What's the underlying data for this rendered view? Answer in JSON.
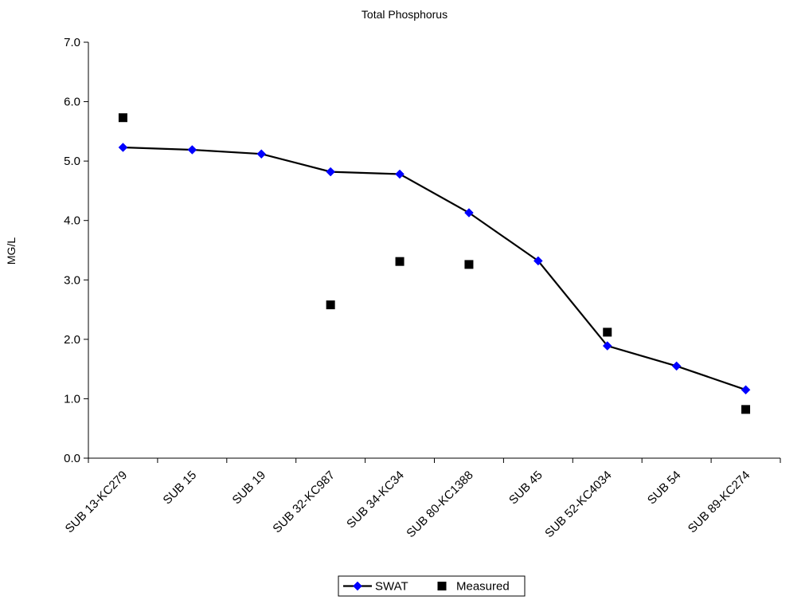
{
  "chart_data": {
    "type": "line",
    "title": "Total Phosphorus",
    "xlabel": "",
    "ylabel": "MG/L",
    "ylim": [
      0,
      7
    ],
    "yticks": [
      "0.0",
      "1.0",
      "2.0",
      "3.0",
      "4.0",
      "5.0",
      "6.0",
      "7.0"
    ],
    "categories": [
      "SUB 13-KC279",
      "SUB 15",
      "SUB 19",
      "SUB 32-KC987",
      "SUB 34-KC34",
      "SUB 80-KC1388",
      "SUB 45",
      "SUB 52-KC4034",
      "SUB 54",
      "SUB 89-KC274"
    ],
    "grid": false,
    "legend_position": "bottom",
    "series": [
      {
        "name": "SWAT",
        "style": "line-diamond",
        "color": "#0000ff",
        "line_color": "#000000",
        "values": [
          5.23,
          5.19,
          5.12,
          4.82,
          4.78,
          4.13,
          3.32,
          1.89,
          1.55,
          1.15
        ]
      },
      {
        "name": "Measured",
        "style": "square",
        "color": "#000000",
        "values": [
          5.73,
          null,
          null,
          2.58,
          3.31,
          3.26,
          null,
          2.12,
          null,
          0.82
        ]
      }
    ]
  }
}
